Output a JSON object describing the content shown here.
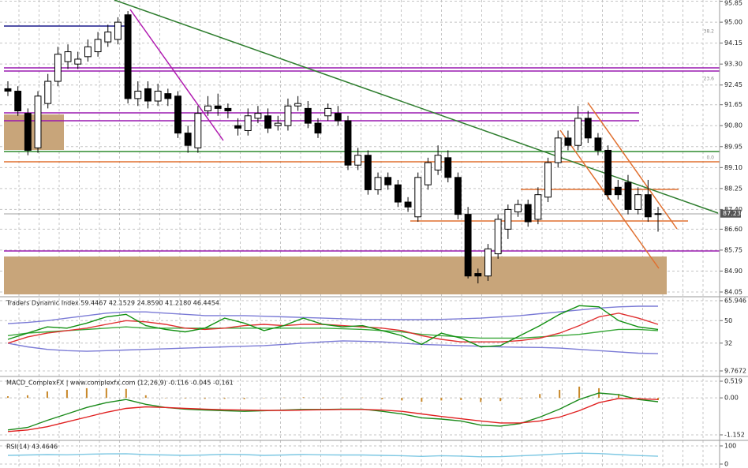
{
  "chart_data": [
    {
      "type": "candlestick",
      "open": [
        92.3,
        92.2,
        91.3,
        89.9,
        91.7,
        92.6,
        93.4,
        93.3,
        93.6,
        93.8,
        94.2,
        94.3,
        95.3,
        91.9,
        92.3,
        91.8,
        92.1,
        92.0,
        90.5,
        89.9,
        91.4,
        91.6,
        91.5,
        90.8,
        90.6,
        91.1,
        91.2,
        90.8,
        90.8,
        91.6,
        91.5,
        90.9,
        91.2,
        91.3,
        91.0,
        89.2,
        89.6,
        88.2,
        88.7,
        88.4,
        87.7,
        87.1,
        88.4,
        89.0,
        89.5,
        88.7,
        87.2,
        84.8,
        84.7,
        85.6,
        86.6,
        87.3,
        87.6,
        87.0,
        87.9,
        89.3,
        90.3,
        90.0,
        91.1,
        90.3,
        89.8,
        88.3,
        88.5,
        87.4,
        88.0,
        87.2
      ],
      "high": [
        92.6,
        92.4,
        91.5,
        92.2,
        92.9,
        94.0,
        94.1,
        93.8,
        94.3,
        94.6,
        94.9,
        95.2,
        95.45,
        92.6,
        92.6,
        92.5,
        92.3,
        92.2,
        90.8,
        91.6,
        92.0,
        92.1,
        91.7,
        91.1,
        91.5,
        91.6,
        91.5,
        91.2,
        91.9,
        92.0,
        91.8,
        91.1,
        91.7,
        91.6,
        91.2,
        89.9,
        89.8,
        88.9,
        88.9,
        88.6,
        87.9,
        88.9,
        89.5,
        90.0,
        89.8,
        88.9,
        87.5,
        85.0,
        86.0,
        87.2,
        87.6,
        87.8,
        87.8,
        88.3,
        89.5,
        90.6,
        90.6,
        91.6,
        91.4,
        90.5,
        90.0,
        88.6,
        88.8,
        88.3,
        88.6,
        87.5
      ],
      "low": [
        92.0,
        91.2,
        89.6,
        89.7,
        91.5,
        92.4,
        93.1,
        93.1,
        93.4,
        93.6,
        94.0,
        94.1,
        91.7,
        91.6,
        91.5,
        91.6,
        91.6,
        90.3,
        89.7,
        89.7,
        91.2,
        91.2,
        91.1,
        90.4,
        90.4,
        90.9,
        90.5,
        90.6,
        90.6,
        91.4,
        90.7,
        90.3,
        91.0,
        90.8,
        89.0,
        89.0,
        88.0,
        88.0,
        88.2,
        87.5,
        87.3,
        86.9,
        88.2,
        88.8,
        88.5,
        87.0,
        84.6,
        84.4,
        84.5,
        85.4,
        86.2,
        87.1,
        86.7,
        86.8,
        87.7,
        89.1,
        89.8,
        89.8,
        90.1,
        89.6,
        87.8,
        87.8,
        87.2,
        87.2,
        86.9,
        86.5
      ],
      "close": [
        92.2,
        91.4,
        89.8,
        92.0,
        92.6,
        93.7,
        93.8,
        93.5,
        94.0,
        94.3,
        94.6,
        95.0,
        91.9,
        92.2,
        91.8,
        92.2,
        91.9,
        90.5,
        90.0,
        91.3,
        91.6,
        91.5,
        91.4,
        90.7,
        91.2,
        91.3,
        90.7,
        90.9,
        91.6,
        91.7,
        90.9,
        90.5,
        91.5,
        91.0,
        89.2,
        89.6,
        88.2,
        88.7,
        88.4,
        87.7,
        87.5,
        88.7,
        89.3,
        89.6,
        88.7,
        87.2,
        84.7,
        84.7,
        85.8,
        87.0,
        87.4,
        87.6,
        86.9,
        88.0,
        89.3,
        90.3,
        90.0,
        91.1,
        90.3,
        89.8,
        88.0,
        88.0,
        87.4,
        88.0,
        87.1,
        87.23
      ],
      "up_color": "#ffffff",
      "down_color": "#000000",
      "ylim": [
        83.89,
        95.9
      ],
      "yticks": [
        {
          "value": 95.85,
          "label": "95.85"
        },
        {
          "value": 95.0,
          "label": "95.00"
        },
        {
          "value": 94.15,
          "label": "94.15"
        },
        {
          "value": 93.3,
          "label": "93.30"
        },
        {
          "value": 92.45,
          "label": "92.45"
        },
        {
          "value": 91.65,
          "label": "91.65"
        },
        {
          "value": 90.8,
          "label": "90.80"
        },
        {
          "value": 89.95,
          "label": "89.95"
        },
        {
          "value": 89.1,
          "label": "89.10"
        },
        {
          "value": 88.25,
          "label": "88.25"
        },
        {
          "value": 87.4,
          "label": "87.40"
        },
        {
          "value": 86.6,
          "label": "86.60"
        },
        {
          "value": 85.75,
          "label": "85.75"
        },
        {
          "value": 84.9,
          "label": "84.90"
        },
        {
          "value": 84.05,
          "label": "84.05"
        }
      ],
      "last_price": {
        "value": 87.23,
        "label": "87.23"
      },
      "annotations": [
        "38.2",
        "23.6",
        "0.0"
      ],
      "grid": true
    },
    {
      "type": "line",
      "title": "Traders Dynamic Index 59.4467 42.1529 24.8590 41.2180 46.4454",
      "series": [
        {
          "color": "#7b7bd6",
          "values": [
            47.6,
            48.5,
            50,
            52,
            54,
            56,
            57,
            57,
            56,
            55,
            54,
            54,
            54,
            53.5,
            53,
            52.5,
            52,
            51.5,
            51,
            51,
            50.8,
            50.8,
            51,
            51.5,
            52,
            53,
            54,
            55.5,
            57,
            58.5,
            60,
            61,
            61.5,
            61.5
          ]
        },
        {
          "color": "#7b7bd6",
          "values": [
            31.9,
            29,
            27,
            26,
            25.5,
            26,
            26.5,
            27,
            27.5,
            28,
            28.5,
            29,
            29.5,
            30,
            31,
            32,
            33,
            33.8,
            33.5,
            33,
            32,
            31,
            30.5,
            30,
            29.5,
            29,
            28.7,
            28.5,
            28,
            27,
            26,
            25,
            24,
            23.6
          ]
        },
        {
          "color": "#3aa83a",
          "values": [
            38,
            40,
            41,
            42,
            43,
            44,
            45,
            44,
            44,
            44,
            44,
            44,
            44,
            44,
            44,
            44,
            44,
            43.5,
            43,
            42,
            41,
            39,
            38,
            37,
            36,
            36,
            36,
            37,
            38,
            39,
            41,
            43,
            43,
            42
          ]
        },
        {
          "color": "#e03030",
          "values": [
            32,
            37,
            40,
            42,
            44,
            47,
            50,
            49,
            47,
            44,
            43,
            44,
            46,
            47,
            46,
            47,
            47,
            46,
            45,
            44,
            42,
            38,
            35,
            33,
            33,
            33,
            34,
            36,
            40,
            46,
            53,
            56,
            52,
            47
          ]
        },
        {
          "color": "#119011",
          "values": [
            35,
            40,
            45,
            44,
            48,
            53,
            55,
            46,
            43,
            41,
            44,
            52,
            48,
            42,
            46,
            52,
            47,
            45,
            46,
            42,
            38,
            31,
            40,
            36,
            29,
            30,
            38,
            46,
            55,
            62,
            61,
            50,
            45,
            43
          ]
        }
      ],
      "ylim": [
        9.7672,
        65.946
      ],
      "yticks": [
        {
          "value": 65.946,
          "label": "65.946"
        },
        50,
        32,
        {
          "value": 9.7672,
          "label": "9.7672"
        }
      ],
      "grid": true
    },
    {
      "type": "line",
      "title": "MACD_ComplexFX | www.complexfx.com (12,26,9) -0.116 -0.045 -0.161",
      "series": [
        {
          "color": "#c8882a",
          "style": "histogram",
          "values": [
            0.05,
            0.08,
            0.2,
            0.25,
            0.3,
            0.3,
            0.28,
            0.08,
            0,
            -0.02,
            -0.03,
            -0.03,
            -0.04,
            -0.01,
            0.01,
            0.02,
            0.01,
            0.01,
            0.01,
            -0.04,
            -0.08,
            -0.12,
            -0.08,
            -0.07,
            -0.13,
            -0.1,
            -0.02,
            0.12,
            0.25,
            0.35,
            0.3,
            0.12,
            -0.02,
            -0.07
          ]
        },
        {
          "color": "#1a8a1a",
          "values": [
            -1.0,
            -0.92,
            -0.7,
            -0.5,
            -0.3,
            -0.15,
            -0.05,
            -0.2,
            -0.3,
            -0.35,
            -0.38,
            -0.4,
            -0.42,
            -0.4,
            -0.38,
            -0.36,
            -0.36,
            -0.35,
            -0.35,
            -0.42,
            -0.5,
            -0.62,
            -0.66,
            -0.72,
            -0.85,
            -0.88,
            -0.8,
            -0.6,
            -0.35,
            -0.05,
            0.15,
            0.1,
            -0.05,
            -0.12
          ]
        },
        {
          "color": "#e02020",
          "values": [
            -1.05,
            -1.0,
            -0.9,
            -0.75,
            -0.6,
            -0.45,
            -0.33,
            -0.28,
            -0.3,
            -0.33,
            -0.35,
            -0.37,
            -0.38,
            -0.39,
            -0.39,
            -0.38,
            -0.37,
            -0.36,
            -0.36,
            -0.38,
            -0.42,
            -0.5,
            -0.58,
            -0.65,
            -0.72,
            -0.78,
            -0.78,
            -0.72,
            -0.6,
            -0.4,
            -0.15,
            -0.02,
            -0.03,
            -0.05
          ]
        }
      ],
      "ylim": [
        -1.152,
        0.519
      ],
      "yticks": [
        {
          "value": 0.519,
          "label": "0.519"
        },
        {
          "value": 0,
          "label": "0.00"
        },
        {
          "value": -1.152,
          "label": "-1.152"
        }
      ],
      "grid": true
    },
    {
      "type": "line",
      "title": "RSI(14) 43.4646",
      "series": [
        {
          "color": "#7ec8e3",
          "values": [
            48,
            50,
            52,
            51,
            54,
            56,
            57,
            52,
            50,
            48,
            50,
            54,
            52,
            48,
            50,
            53,
            51,
            50,
            50,
            48,
            46,
            42,
            46,
            44,
            40,
            41,
            45,
            50,
            56,
            60,
            58,
            52,
            47,
            43
          ]
        }
      ],
      "ylim": [
        0,
        100
      ],
      "yticks": [
        100,
        0
      ],
      "grid": true
    }
  ]
}
